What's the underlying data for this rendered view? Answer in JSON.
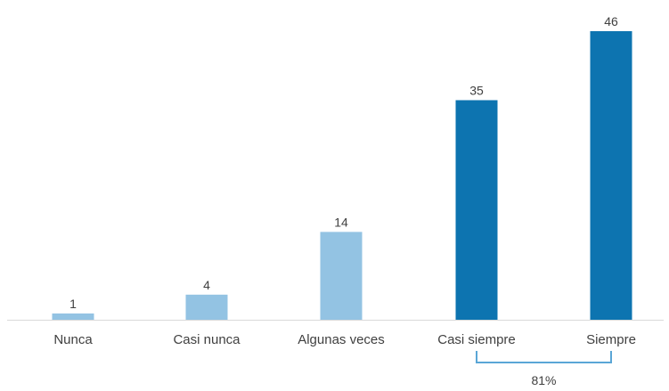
{
  "chart_data": {
    "type": "bar",
    "categories": [
      "Nunca",
      "Casi nunca",
      "Algunas veces",
      "Casi siempre",
      "Siempre"
    ],
    "values": [
      1,
      4,
      14,
      35,
      46
    ],
    "data_labels": [
      "1",
      "4",
      "14",
      "35",
      "46"
    ],
    "ylim": [
      0,
      46
    ],
    "grid": false,
    "colors": {
      "light": "#93c3e3",
      "dark": "#0d74b0",
      "axis": "#d9d9d9",
      "bracket": "#5aa6d6",
      "text": "#404040"
    },
    "bar_color_keys": [
      "light",
      "light",
      "light",
      "dark",
      "dark"
    ],
    "annotation": {
      "label": "81%",
      "spans": [
        "Casi siempre",
        "Siempre"
      ]
    }
  }
}
